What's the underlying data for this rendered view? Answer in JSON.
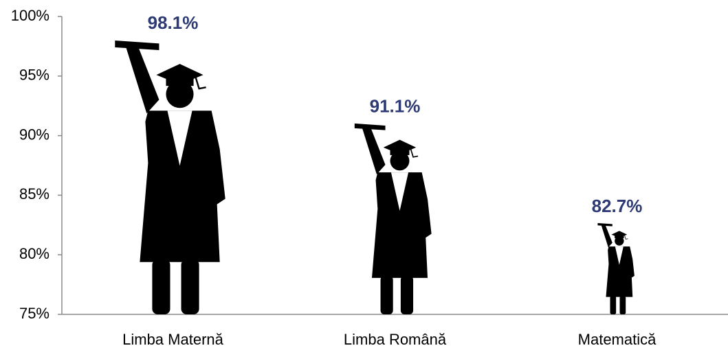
{
  "chart_data": {
    "type": "bar",
    "categories": [
      "Limba Maternă",
      "Limba Română",
      "Matematică"
    ],
    "values": [
      98.1,
      91.1,
      82.7
    ],
    "value_labels": [
      "98.1%",
      "91.1%",
      "82.7%"
    ],
    "color": "#000000",
    "label_color": "#2e3a73",
    "ylim": [
      75,
      100
    ],
    "yticks": [
      {
        "value": 75,
        "label": "75%"
      },
      {
        "value": 80,
        "label": "80%"
      },
      {
        "value": 85,
        "label": "85%"
      },
      {
        "value": 90,
        "label": "90%"
      },
      {
        "value": 95,
        "label": "95%"
      },
      {
        "value": 100,
        "label": "100%"
      }
    ]
  }
}
